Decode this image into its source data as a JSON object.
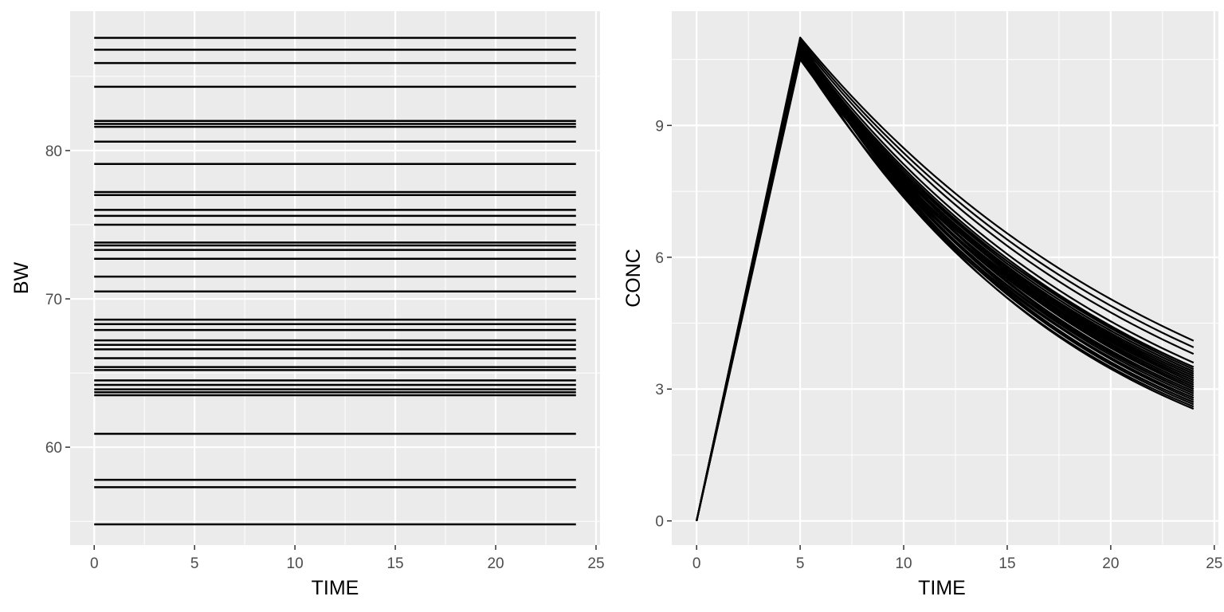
{
  "chart_data": [
    {
      "type": "line",
      "xlabel": "TIME",
      "ylabel": "BW",
      "xlim": [
        -1.2,
        25.2
      ],
      "ylim": [
        53.4,
        89.4
      ],
      "xticks": [
        0,
        5,
        10,
        15,
        20,
        25
      ],
      "yticks": [
        60,
        70,
        80
      ],
      "grid": true,
      "legend": "none",
      "series_x": [
        0,
        24
      ],
      "series_values": [
        87.6,
        86.8,
        85.9,
        84.3,
        82.0,
        81.8,
        81.6,
        80.6,
        79.1,
        77.2,
        77.0,
        76.0,
        75.6,
        75.0,
        73.8,
        73.6,
        73.3,
        72.7,
        71.5,
        70.5,
        68.6,
        68.3,
        67.9,
        67.2,
        66.9,
        66.6,
        66.0,
        65.4,
        65.2,
        64.5,
        64.2,
        63.9,
        63.7,
        63.5,
        60.9,
        57.8,
        57.3,
        54.8
      ]
    },
    {
      "type": "line",
      "xlabel": "TIME",
      "ylabel": "CONC",
      "xlim": [
        -1.2,
        25.2
      ],
      "ylim": [
        -0.55,
        11.6
      ],
      "xticks": [
        0,
        5,
        10,
        15,
        20,
        25
      ],
      "yticks": [
        0,
        3,
        6,
        9
      ],
      "grid": true,
      "legend": "none",
      "model": "linear rise from 0 at TIME 0 to the peak at TIME 5, then exponential decline to the end value at TIME 24",
      "peak_time": 5,
      "end_time": 24,
      "peaks": [
        11.0,
        10.95,
        10.9,
        10.85,
        10.8,
        10.75,
        10.7,
        10.65,
        10.6,
        10.55,
        10.5,
        10.85,
        10.7,
        10.6,
        10.9,
        10.8,
        10.65,
        10.75,
        10.55,
        10.95,
        10.62,
        10.78,
        10.68,
        10.88,
        10.58,
        10.72,
        10.82,
        10.66,
        10.92,
        10.7,
        10.8,
        10.6,
        10.9,
        10.75,
        10.63,
        10.85,
        10.7,
        10.8
      ],
      "end_values": [
        4.1,
        3.95,
        3.8,
        3.6,
        3.5,
        3.45,
        3.4,
        3.35,
        3.3,
        3.25,
        3.2,
        3.15,
        3.1,
        3.05,
        3.0,
        2.95,
        2.9,
        2.85,
        2.8,
        2.75,
        2.7,
        2.65,
        2.6,
        2.55,
        3.5,
        3.3,
        3.2,
        3.1,
        3.0,
        3.4,
        3.25,
        3.15,
        2.9,
        2.8,
        3.35,
        3.05,
        2.95,
        2.7
      ]
    }
  ]
}
